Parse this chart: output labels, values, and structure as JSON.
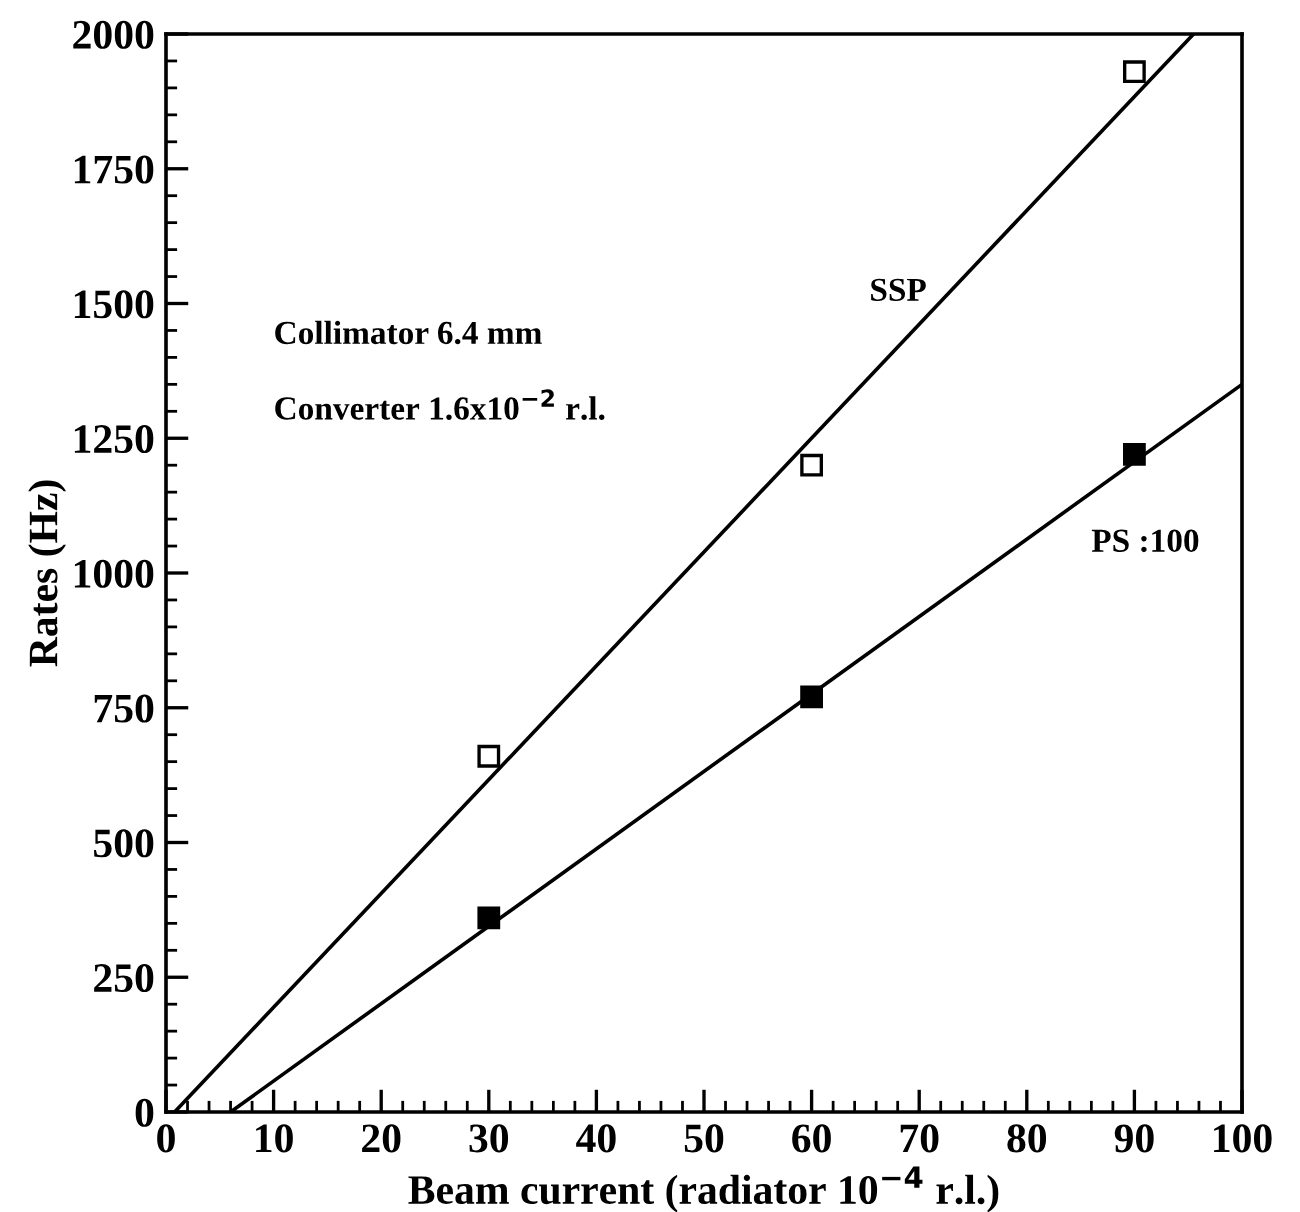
{
  "chart_data": {
    "type": "scatter",
    "xlabel": "Beam current (radiator 10$^{−4}$ r.l.)",
    "ylabel": "Rates (Hz)",
    "xlim": [
      0,
      100
    ],
    "xticks": [
      0,
      10,
      20,
      30,
      40,
      50,
      60,
      70,
      80,
      90,
      100
    ],
    "ylim": [
      0,
      2000
    ],
    "yticks": [
      0,
      250,
      500,
      750,
      1000,
      1250,
      1500,
      1750,
      2000
    ],
    "grid": false,
    "legend": false,
    "series": [
      {
        "marker": "square",
        "color": "#ffffff",
        "x": [
          30,
          60,
          90
        ],
        "values": [
          660,
          1200,
          1930
        ]
      },
      {
        "marker": "square",
        "color": "#000000",
        "x": [
          30,
          60,
          90
        ],
        "values": [
          360,
          770,
          1220
        ]
      },
      {
        "type": "line",
        "name": "SSP",
        "color": "#000000",
        "x": [
          0.8,
          95.5
        ],
        "values": [
          0,
          2000
        ]
      },
      {
        "type": "line",
        "name": "PS :100",
        "color": "#000000",
        "x": [
          6,
          100
        ],
        "values": [
          0,
          1350
        ]
      }
    ],
    "annotations": [
      "Collimator 6.4 mm",
      "Converter 1.6x10$^{−2}$ r.l."
    ]
  }
}
